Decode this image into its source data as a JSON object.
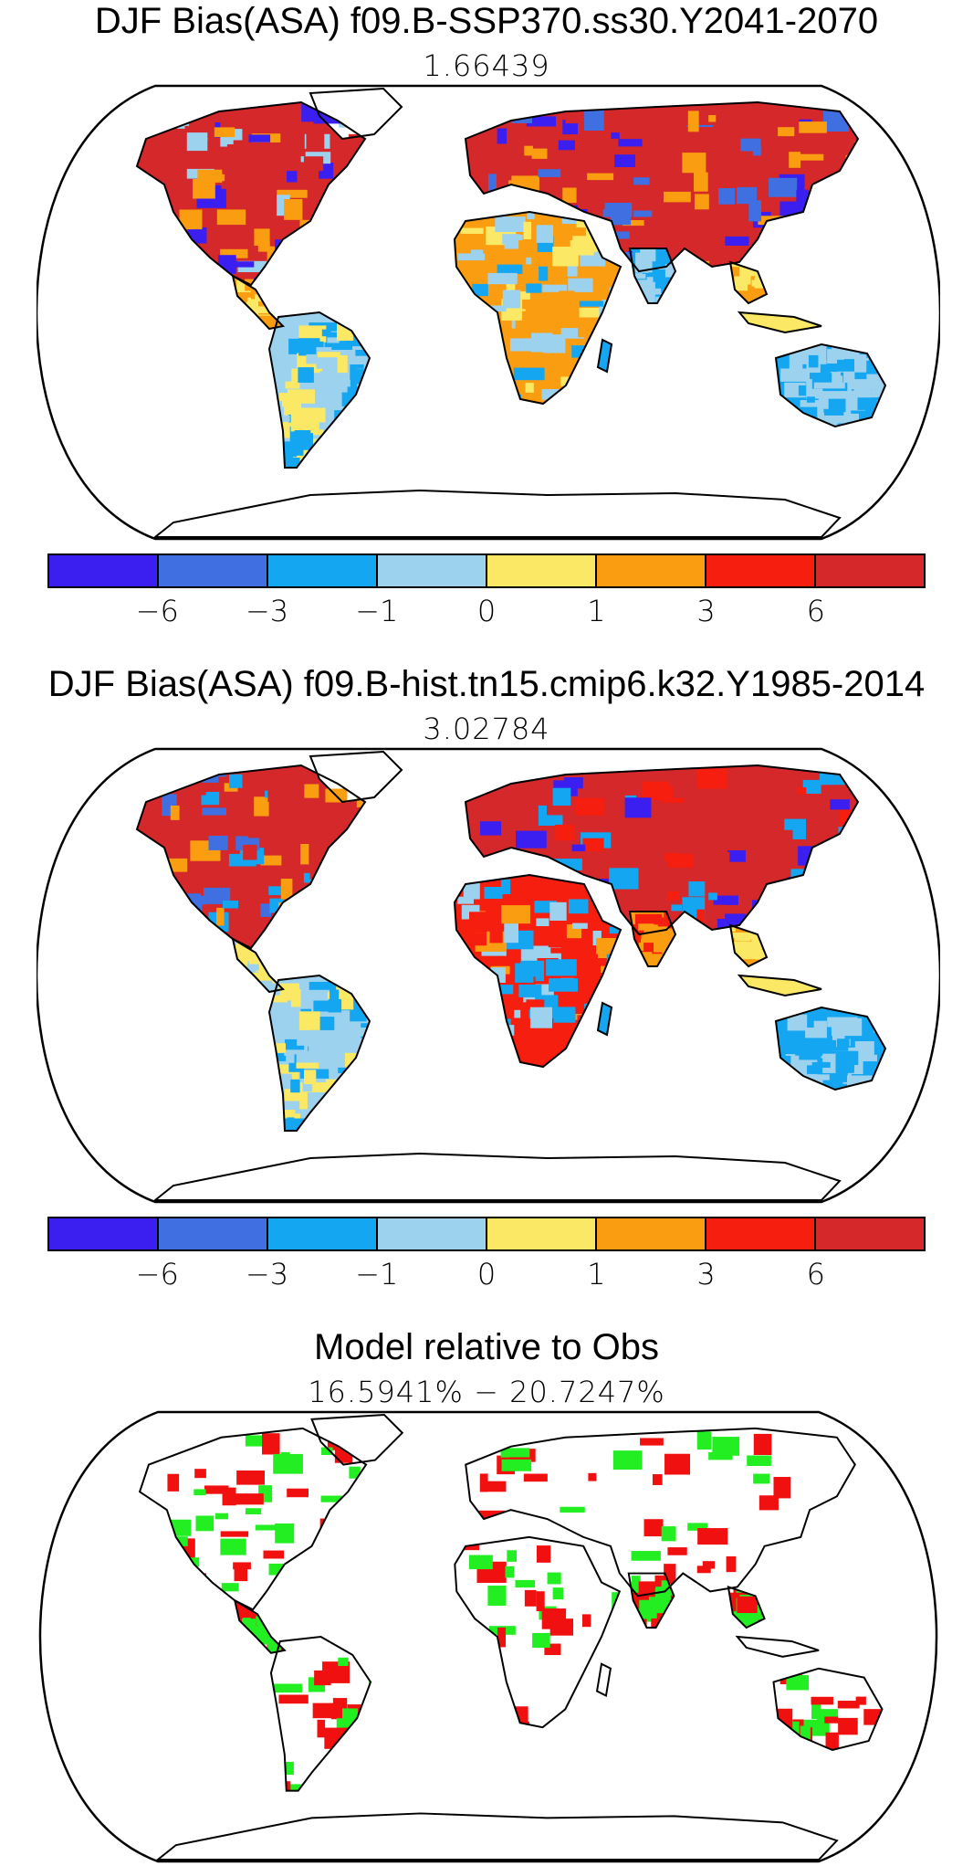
{
  "panels": [
    {
      "title": "DJF Bias(ASA) f09.B-SSP370.ss30.Y2041-2070",
      "subtitle": "1.66439"
    },
    {
      "title": "DJF Bias(ASA) f09.B-hist.tn15.cmip6.k32.Y1985-2014",
      "subtitle": "3.02784"
    },
    {
      "title": "Model relative to Obs",
      "subtitle": "16.5941% − 20.7247%"
    }
  ],
  "colorbar": {
    "colors": [
      "#3a1ff0",
      "#3f6fe0",
      "#14a6f0",
      "#9dd2ef",
      "#fbe966",
      "#fb9d10",
      "#f61e0e",
      "#d4282a"
    ],
    "tick_labels": [
      "−6",
      "−3",
      "−1",
      "0",
      "1",
      "3",
      "6"
    ]
  },
  "legend_colors": {
    "ocean": "#ffffff",
    "coastline": "#000000",
    "relative_red": "#f01010",
    "relative_green": "#22ee22"
  }
}
